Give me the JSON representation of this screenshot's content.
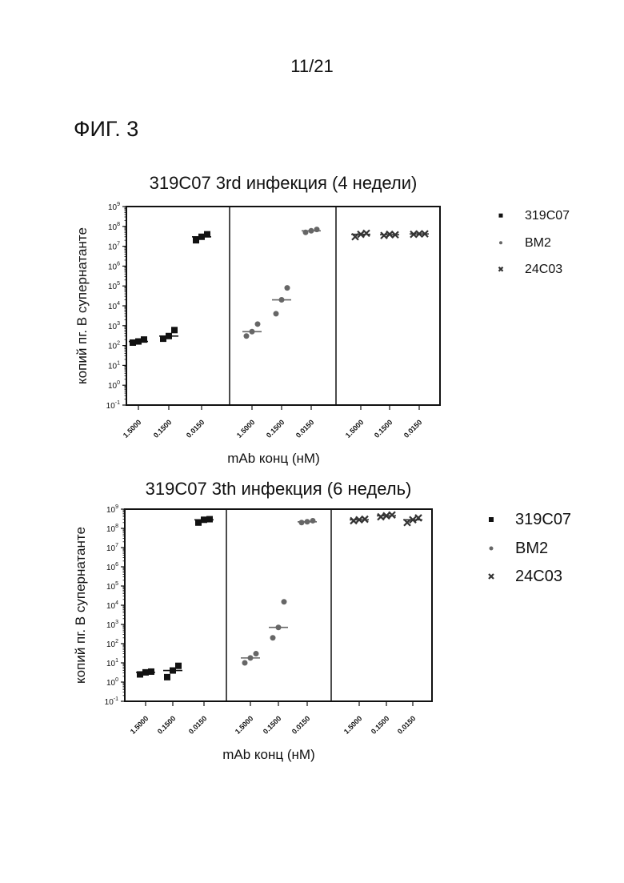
{
  "page": {
    "number": "11/21",
    "figure_label": "ФИГ. 3"
  },
  "colors": {
    "319C07": "#111111",
    "BM2": "#666666",
    "24C03": "#333333"
  },
  "chart_data": [
    {
      "type": "scatter",
      "title": "319C07 3rd инфекция (4 недели)",
      "xlabel": "mAb конц (нМ)",
      "ylabel": "копий пг. В супернатанте",
      "y_scale": "log10",
      "ylim": [
        0.1,
        1000000000
      ],
      "y_ticks": [
        {
          "exp": -1,
          "label": "10",
          "sup": "-1"
        },
        {
          "exp": 0,
          "label": "10",
          "sup": "0"
        },
        {
          "exp": 1,
          "label": "10",
          "sup": "1"
        },
        {
          "exp": 2,
          "label": "10",
          "sup": "2"
        },
        {
          "exp": 3,
          "label": "10",
          "sup": "3"
        },
        {
          "exp": 4,
          "label": "10",
          "sup": "4"
        },
        {
          "exp": 5,
          "label": "10",
          "sup": "5"
        },
        {
          "exp": 6,
          "label": "10",
          "sup": "6"
        },
        {
          "exp": 7,
          "label": "10",
          "sup": "7"
        },
        {
          "exp": 8,
          "label": "10",
          "sup": "8"
        },
        {
          "exp": 9,
          "label": "10",
          "sup": "9"
        }
      ],
      "x_tick_labels": [
        "1.5000",
        "0.1500",
        "0.0150"
      ],
      "legend": {
        "position": "right"
      },
      "series": [
        {
          "name": "319C07",
          "marker": "square",
          "points": [
            [
              140,
              200,
              160
            ],
            [
              220,
              600,
              300
            ],
            [
              20000000,
              40000000,
              30000000
            ]
          ],
          "medians": [
            160,
            300,
            30000000
          ]
        },
        {
          "name": "BM2",
          "marker": "circle",
          "points": [
            [
              300,
              1200,
              500
            ],
            [
              4000,
              80000,
              20000
            ],
            [
              50000000,
              70000000,
              60000000
            ]
          ],
          "medians": [
            500,
            20000,
            60000000
          ]
        },
        {
          "name": "24C03",
          "marker": "x",
          "points": [
            [
              30000000,
              45000000,
              40000000
            ],
            [
              35000000,
              38000000,
              40000000
            ],
            [
              40000000,
              42000000,
              42000000
            ]
          ],
          "medians": [
            40000000,
            38000000,
            42000000
          ]
        }
      ]
    },
    {
      "type": "scatter",
      "title": "319C07 3th инфекция (6 недель)",
      "xlabel": "mAb конц (нМ)",
      "ylabel": "копий пг. В супернатанте",
      "y_scale": "log10",
      "ylim": [
        0.1,
        1000000000
      ],
      "y_ticks": [
        {
          "exp": -1,
          "label": "10",
          "sup": "-1"
        },
        {
          "exp": 0,
          "label": "10",
          "sup": "0"
        },
        {
          "exp": 1,
          "label": "10",
          "sup": "1"
        },
        {
          "exp": 2,
          "label": "10",
          "sup": "2"
        },
        {
          "exp": 3,
          "label": "10",
          "sup": "3"
        },
        {
          "exp": 4,
          "label": "10",
          "sup": "4"
        },
        {
          "exp": 5,
          "label": "10",
          "sup": "5"
        },
        {
          "exp": 6,
          "label": "10",
          "sup": "6"
        },
        {
          "exp": 7,
          "label": "10",
          "sup": "7"
        },
        {
          "exp": 8,
          "label": "10",
          "sup": "8"
        },
        {
          "exp": 9,
          "label": "10",
          "sup": "9"
        }
      ],
      "x_tick_labels": [
        "1.5000",
        "0.1500",
        "0.0150"
      ],
      "legend": {
        "position": "right"
      },
      "series": [
        {
          "name": "319C07",
          "marker": "square",
          "points": [
            [
              2.5,
              3.5,
              3.2
            ],
            [
              1.8,
              7,
              4
            ],
            [
              200000000,
              300000000,
              280000000
            ]
          ],
          "medians": [
            3.2,
            4,
            280000000
          ]
        },
        {
          "name": "BM2",
          "marker": "circle",
          "points": [
            [
              10,
              30,
              18
            ],
            [
              200,
              15000,
              700
            ],
            [
              200000000,
              250000000,
              220000000
            ]
          ],
          "medians": [
            18,
            700,
            220000000
          ]
        },
        {
          "name": "24C03",
          "marker": "x",
          "points": [
            [
              250000000,
              300000000,
              280000000
            ],
            [
              400000000,
              500000000,
              450000000
            ],
            [
              200000000,
              350000000,
              280000000
            ]
          ],
          "medians": [
            280000000,
            450000000,
            280000000
          ]
        }
      ]
    }
  ]
}
